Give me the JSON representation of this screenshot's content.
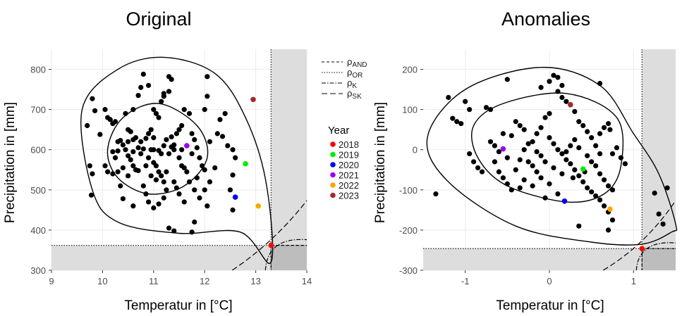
{
  "chart_data": [
    {
      "type": "scatter",
      "title": "Original",
      "xlabel": "Temperatur in [°C]",
      "ylabel": "Precipitation in [mm]",
      "xlim": [
        9,
        14
      ],
      "ylim": [
        300,
        850
      ],
      "xticks": [
        9,
        10,
        11,
        12,
        13,
        14
      ],
      "yticks": [
        300,
        400,
        500,
        600,
        700,
        800
      ],
      "threshold": {
        "x": 13.3,
        "y": 362
      },
      "years": [
        {
          "year": "2018",
          "color": "#ff0000",
          "x": 13.3,
          "y": 362
        },
        {
          "year": "2019",
          "color": "#00ee00",
          "x": 12.8,
          "y": 565
        },
        {
          "year": "2020",
          "color": "#0000ee",
          "x": 12.6,
          "y": 482
        },
        {
          "year": "2021",
          "color": "#9a00ee",
          "x": 11.65,
          "y": 610
        },
        {
          "year": "2022",
          "color": "#ffa500",
          "x": 13.05,
          "y": 460
        },
        {
          "year": "2023",
          "color": "#a52a2a",
          "x": 12.95,
          "y": 725
        }
      ],
      "points": [
        [
          9.7,
          660
        ],
        [
          9.8,
          727
        ],
        [
          9.85,
          697
        ],
        [
          9.75,
          560
        ],
        [
          9.8,
          540
        ],
        [
          9.78,
          487
        ],
        [
          9.95,
          638
        ],
        [
          10.05,
          700
        ],
        [
          10.1,
          680
        ],
        [
          10.15,
          675
        ],
        [
          10.2,
          665
        ],
        [
          10.05,
          560
        ],
        [
          10.1,
          545
        ],
        [
          10.2,
          540
        ],
        [
          10.3,
          545
        ],
        [
          10.35,
          623
        ],
        [
          10.4,
          612
        ],
        [
          10.45,
          600
        ],
        [
          10.25,
          580
        ],
        [
          10.3,
          597
        ],
        [
          10.35,
          510
        ],
        [
          10.4,
          478
        ],
        [
          10.5,
          535
        ],
        [
          10.5,
          650
        ],
        [
          10.55,
          645
        ],
        [
          10.6,
          625
        ],
        [
          10.6,
          700
        ],
        [
          10.7,
          735
        ],
        [
          10.75,
          755
        ],
        [
          10.8,
          788
        ],
        [
          10.45,
          690
        ],
        [
          10.5,
          585
        ],
        [
          10.55,
          575
        ],
        [
          10.6,
          560
        ],
        [
          10.65,
          550
        ],
        [
          10.7,
          548
        ],
        [
          10.75,
          590
        ],
        [
          10.8,
          602
        ],
        [
          10.85,
          628
        ],
        [
          10.9,
          640
        ],
        [
          10.95,
          600
        ],
        [
          11.0,
          630
        ],
        [
          11.0,
          700
        ],
        [
          11.05,
          690
        ],
        [
          11.1,
          680
        ],
        [
          11.15,
          720
        ],
        [
          11.2,
          733
        ],
        [
          11.3,
          782
        ],
        [
          11.35,
          775
        ],
        [
          11.0,
          568
        ],
        [
          11.05,
          560
        ],
        [
          11.1,
          545
        ],
        [
          11.15,
          535
        ],
        [
          11.2,
          520
        ],
        [
          10.8,
          510
        ],
        [
          10.85,
          490
        ],
        [
          10.9,
          470
        ],
        [
          11.0,
          455
        ],
        [
          11.1,
          465
        ],
        [
          11.2,
          480
        ],
        [
          11.25,
          500
        ],
        [
          11.3,
          590
        ],
        [
          11.35,
          607
        ],
        [
          11.4,
          612
        ],
        [
          11.45,
          640
        ],
        [
          11.5,
          650
        ],
        [
          11.55,
          660
        ],
        [
          11.5,
          580
        ],
        [
          11.55,
          560
        ],
        [
          11.6,
          555
        ],
        [
          11.65,
          545
        ],
        [
          11.4,
          520
        ],
        [
          11.45,
          505
        ],
        [
          11.5,
          490
        ],
        [
          11.6,
          470
        ],
        [
          11.2,
          740
        ],
        [
          11.3,
          745
        ],
        [
          11.6,
          700
        ],
        [
          11.7,
          690
        ],
        [
          11.75,
          640
        ],
        [
          11.8,
          625
        ],
        [
          11.85,
          605
        ],
        [
          11.9,
          580
        ],
        [
          11.95,
          560
        ],
        [
          12.0,
          550
        ],
        [
          12.0,
          700
        ],
        [
          12.05,
          733
        ],
        [
          12.05,
          782
        ],
        [
          11.7,
          520
        ],
        [
          11.8,
          500
        ],
        [
          11.9,
          480
        ],
        [
          12.0,
          500
        ],
        [
          12.05,
          460
        ],
        [
          11.3,
          405
        ],
        [
          11.4,
          398
        ],
        [
          11.75,
          395
        ],
        [
          11.8,
          420
        ],
        [
          12.25,
          640
        ],
        [
          12.35,
          633
        ],
        [
          12.4,
          690
        ],
        [
          12.3,
          675
        ],
        [
          12.45,
          610
        ],
        [
          12.55,
          600
        ],
        [
          12.6,
          580
        ],
        [
          12.55,
          450
        ],
        [
          12.5,
          500
        ],
        [
          12.55,
          537
        ],
        [
          12.1,
          620
        ],
        [
          12.2,
          555
        ],
        [
          10.9,
          760
        ],
        [
          10.6,
          460
        ],
        [
          10.4,
          555
        ],
        [
          10.25,
          670
        ],
        [
          10.7,
          605
        ],
        [
          10.9,
          580
        ],
        [
          11.0,
          600
        ],
        [
          11.1,
          598
        ],
        [
          11.2,
          610
        ],
        [
          11.25,
          625
        ],
        [
          11.35,
          632
        ],
        [
          11.4,
          600
        ],
        [
          10.65,
          630
        ],
        [
          10.75,
          620
        ],
        [
          10.85,
          560
        ],
        [
          10.95,
          535
        ],
        [
          11.05,
          525
        ],
        [
          11.25,
          545
        ],
        [
          10.5,
          620
        ],
        [
          10.2,
          595
        ],
        [
          11.15,
          590
        ],
        [
          11.55,
          600
        ],
        [
          11.75,
          590
        ],
        [
          11.65,
          610
        ],
        [
          10.3,
          620
        ],
        [
          11.85,
          530
        ],
        [
          12.1,
          520
        ],
        [
          10.95,
          650
        ],
        [
          10.6,
          595
        ]
      ]
    },
    {
      "type": "scatter",
      "title": "Anomalies",
      "xlabel": "Temperatur in [°C]",
      "ylabel": "Precipitation in [mm]",
      "xlim": [
        -1.5,
        1.5
      ],
      "ylim": [
        -300,
        250
      ],
      "xticks": [
        -1,
        0,
        1
      ],
      "yticks": [
        -300,
        -200,
        -100,
        0,
        100,
        200
      ],
      "threshold": {
        "x": 1.1,
        "y": -246
      },
      "years": [
        {
          "year": "2018",
          "color": "#ff0000",
          "x": 1.1,
          "y": -246
        },
        {
          "year": "2019",
          "color": "#00ee00",
          "x": 0.4,
          "y": -48
        },
        {
          "year": "2020",
          "color": "#0000ee",
          "x": 0.18,
          "y": -128
        },
        {
          "year": "2021",
          "color": "#9a00ee",
          "x": -0.55,
          "y": 2
        },
        {
          "year": "2022",
          "color": "#ffa500",
          "x": 0.72,
          "y": -148
        },
        {
          "year": "2023",
          "color": "#a52a2a",
          "x": 0.25,
          "y": 112
        }
      ],
      "points": [
        [
          -1.35,
          -110
        ],
        [
          -1.2,
          130
        ],
        [
          -1.15,
          78
        ],
        [
          -1.1,
          70
        ],
        [
          -1.05,
          65
        ],
        [
          -1.0,
          120
        ],
        [
          -0.95,
          100
        ],
        [
          -0.95,
          -10
        ],
        [
          -0.9,
          -30
        ],
        [
          -0.85,
          -45
        ],
        [
          -0.8,
          -55
        ],
        [
          -0.75,
          105
        ],
        [
          -0.7,
          100
        ],
        [
          -0.7,
          20
        ],
        [
          -0.65,
          10
        ],
        [
          -0.6,
          -5
        ],
        [
          -0.6,
          -55
        ],
        [
          -0.55,
          -70
        ],
        [
          -0.5,
          -85
        ],
        [
          -0.45,
          -100
        ],
        [
          -0.55,
          40
        ],
        [
          -0.45,
          35
        ],
        [
          -0.4,
          70
        ],
        [
          -0.35,
          60
        ],
        [
          -0.3,
          50
        ],
        [
          -0.3,
          0
        ],
        [
          -0.25,
          -30
        ],
        [
          -0.2,
          -40
        ],
        [
          -0.15,
          -55
        ],
        [
          -0.1,
          -70
        ],
        [
          -0.35,
          -25
        ],
        [
          -0.4,
          -50
        ],
        [
          -0.2,
          20
        ],
        [
          -0.15,
          40
        ],
        [
          -0.1,
          55
        ],
        [
          -0.05,
          80
        ],
        [
          0.0,
          90
        ],
        [
          -0.5,
          175
        ],
        [
          -0.1,
          155
        ],
        [
          0.0,
          170
        ],
        [
          0.05,
          185
        ],
        [
          0.1,
          180
        ],
        [
          0.15,
          160
        ],
        [
          0.1,
          145
        ],
        [
          0.15,
          130
        ],
        [
          0.2,
          120
        ],
        [
          0.25,
          112
        ],
        [
          0.3,
          95
        ],
        [
          0.0,
          30
        ],
        [
          0.05,
          15
        ],
        [
          0.1,
          0
        ],
        [
          0.15,
          -10
        ],
        [
          0.2,
          -25
        ],
        [
          0.25,
          -35
        ],
        [
          0.3,
          -50
        ],
        [
          0.35,
          -65
        ],
        [
          0.4,
          -80
        ],
        [
          0.45,
          -95
        ],
        [
          0.5,
          -105
        ],
        [
          0.55,
          -115
        ],
        [
          0.6,
          -125
        ],
        [
          0.65,
          -140
        ],
        [
          0.7,
          -155
        ],
        [
          0.75,
          -175
        ],
        [
          0.7,
          -200
        ],
        [
          0.35,
          -190
        ],
        [
          0.1,
          -110
        ],
        [
          -0.05,
          -120
        ],
        [
          -0.2,
          -90
        ],
        [
          -0.3,
          -75
        ],
        [
          0.5,
          -30
        ],
        [
          0.55,
          -40
        ],
        [
          0.6,
          -60
        ],
        [
          0.65,
          -75
        ],
        [
          0.7,
          -90
        ],
        [
          0.75,
          -100
        ],
        [
          0.6,
          40
        ],
        [
          0.65,
          55
        ],
        [
          0.7,
          65
        ],
        [
          0.72,
          50
        ],
        [
          0.55,
          10
        ],
        [
          0.5,
          30
        ],
        [
          0.45,
          45
        ],
        [
          0.4,
          60
        ],
        [
          0.35,
          70
        ],
        [
          0.6,
          165
        ],
        [
          0.75,
          -10
        ],
        [
          0.8,
          5
        ],
        [
          0.85,
          -20
        ],
        [
          0.9,
          -35
        ],
        [
          1.25,
          -108
        ],
        [
          1.4,
          -95
        ],
        [
          1.3,
          -160
        ],
        [
          1.35,
          -185
        ],
        [
          0.2,
          -5
        ],
        [
          0.25,
          10
        ],
        [
          0.3,
          25
        ],
        [
          -0.1,
          -15
        ],
        [
          -0.15,
          -5
        ],
        [
          -0.25,
          15
        ],
        [
          0.45,
          -15
        ],
        [
          0.15,
          -60
        ],
        [
          0.05,
          -45
        ],
        [
          -0.05,
          -30
        ],
        [
          0.6,
          -10
        ],
        [
          -0.65,
          -30
        ],
        [
          -0.5,
          -20
        ],
        [
          0.35,
          5
        ],
        [
          0.42,
          -55
        ],
        [
          0.28,
          -70
        ],
        [
          0.0,
          -85
        ],
        [
          -0.35,
          -95
        ]
      ]
    }
  ],
  "legend": {
    "lines": [
      {
        "label": "ρAND",
        "base": "ρ",
        "sub": "AND",
        "dash": "4,3"
      },
      {
        "label": "ρOR",
        "base": "ρ",
        "sub": "OR",
        "dash": "1.5,2"
      },
      {
        "label": "ρK",
        "base": "ρ",
        "sub": "K",
        "dash": "6,2,1.5,2"
      },
      {
        "label": "ρSK",
        "base": "ρ",
        "sub": "SK",
        "dash": "8,4"
      }
    ],
    "title": "Year",
    "years": [
      {
        "label": "2018",
        "color": "#ff0000"
      },
      {
        "label": "2019",
        "color": "#00ee00"
      },
      {
        "label": "2020",
        "color": "#0000ee"
      },
      {
        "label": "2021",
        "color": "#9a00ee"
      },
      {
        "label": "2022",
        "color": "#ffa500"
      },
      {
        "label": "2023",
        "color": "#a52a2a"
      }
    ]
  }
}
